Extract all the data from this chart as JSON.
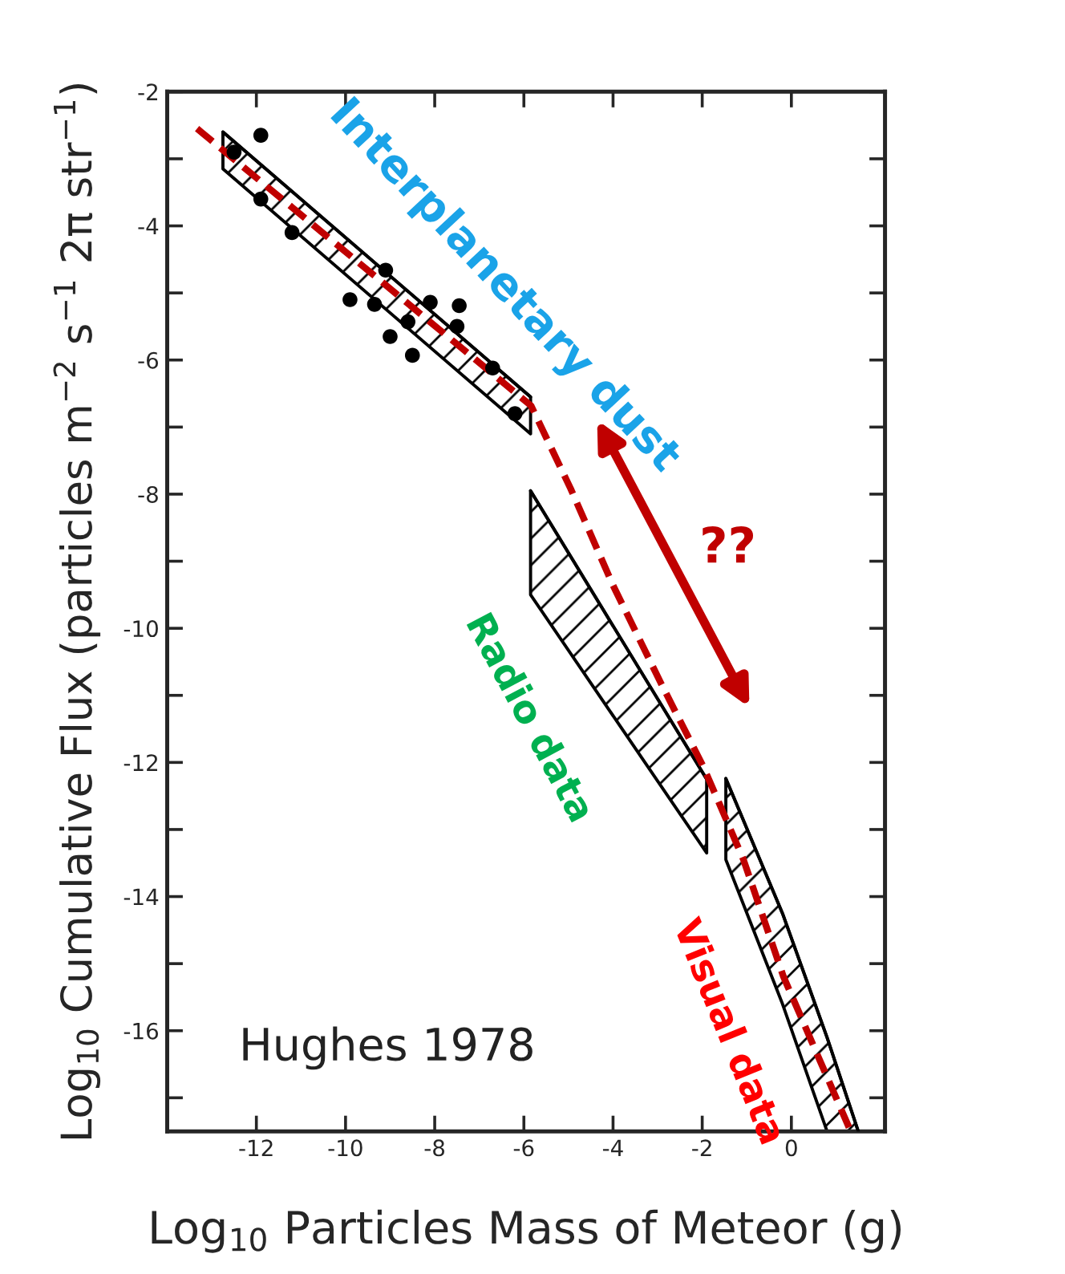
{
  "chart_data": {
    "type": "scatter",
    "xlabel": "Log$_{10}$ Particles Mass of Meteor (g)",
    "ylabel": "Log$_{10}$ Cumulative Flux (particles m$^{−2}$ s$^{−1}$ 2π str$^{−1}$)",
    "xlim": [
      -14,
      2.1
    ],
    "ylim": [
      -17.5,
      -2
    ],
    "xticks": [
      -12,
      -10,
      -8,
      -6,
      -4,
      -2,
      0
    ],
    "yticks": [
      -2,
      {
        "value": -3,
        "label": null
      },
      -4,
      {
        "value": -5,
        "label": null
      },
      -6,
      {
        "value": -7,
        "label": null
      },
      -8,
      {
        "value": -9,
        "label": null
      },
      -10,
      {
        "value": -11,
        "label": null
      },
      -12,
      {
        "value": -13,
        "label": null
      },
      -14,
      {
        "value": -15,
        "label": null
      },
      -16,
      {
        "value": -17,
        "label": null
      }
    ],
    "grid": false,
    "series": [
      {
        "type": "line",
        "color": "#000000",
        "x": [
          -12.75,
          -5.85
        ],
        "values": [
          -2.6,
          -6.55
        ],
        "lower": [
          -3.15,
          -7.1
        ],
        "upper": [
          -2.6,
          -6.55
        ]
      },
      {
        "type": "line",
        "color": "#000000",
        "x": [
          -5.85,
          -1.9
        ],
        "values": [
          -7.95,
          -12.25
        ],
        "lower": [
          -9.5,
          -13.35
        ],
        "upper": [
          -7.95,
          -12.25
        ]
      },
      {
        "type": "line",
        "color": "#000000",
        "x": [
          -1.47,
          -0.2,
          0.8,
          1.5
        ],
        "values": [
          -12.24,
          -14.25,
          -16.1,
          -17.5
        ],
        "lower": [
          -13.45,
          -15.6,
          -17.5,
          -17.5
        ],
        "upper": [
          -12.24,
          -14.25,
          -16.1,
          -17.5
        ]
      },
      {
        "color": "#000000",
        "marker": "circle",
        "x": [
          -11.9,
          -12.5,
          -11.9,
          -11.2,
          -9.1,
          -9.9,
          -9.35,
          -8.1,
          -7.45,
          -8.6,
          -7.5,
          -9.0,
          -8.5,
          -6.7,
          -6.2
        ],
        "values": [
          -2.65,
          -2.9,
          -3.6,
          -4.1,
          -4.66,
          -5.1,
          -5.17,
          -5.14,
          -5.19,
          -5.43,
          -5.5,
          -5.65,
          -5.93,
          -6.12,
          -6.8
        ]
      },
      {
        "type": "line",
        "color": "#c00000",
        "line_style": "dashed",
        "marker": "none",
        "x": [
          -13.33,
          -5.84,
          -4.95,
          -4.0,
          -2.94,
          -1.97,
          -1.08,
          -0.18,
          1.33
        ],
        "values": [
          -2.55,
          -6.68,
          -7.92,
          -9.36,
          -10.8,
          -12.07,
          -13.44,
          -15.19,
          -17.5
        ]
      }
    ],
    "annotations": [
      "Interplanetary dust",
      "Radio data",
      "Visual data",
      "??",
      "Hughes 1978"
    ]
  }
}
